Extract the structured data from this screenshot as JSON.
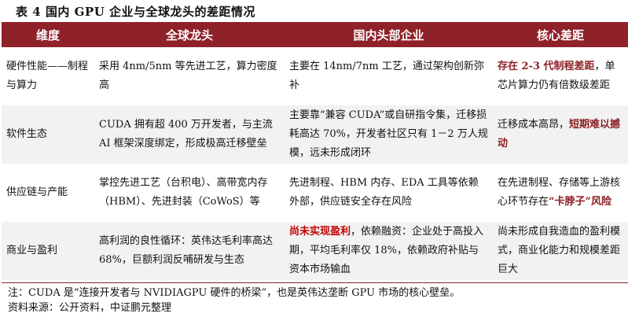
{
  "title": "表 4 国内 GPU 企业与全球龙头的差距情况",
  "headers": [
    "维度",
    "全球龙头",
    "国内头部企业",
    "核心差距"
  ],
  "accent_color": "#8f2129",
  "rows": [
    {
      "dimension": "硬件性能——制程与算力",
      "global": [
        {
          "t": "采用 4nm/5nm 等先进工艺，算力密度高",
          "s": ""
        }
      ],
      "domestic": [
        {
          "t": "主要在 14nm/7nm 工艺，通过架构创新弥补",
          "s": ""
        }
      ],
      "gap": [
        {
          "t": "存在 2-3 代制程差距",
          "s": "em"
        },
        {
          "t": "，单芯片算力仍有倍数级差距",
          "s": ""
        }
      ]
    },
    {
      "dimension": "软件生态",
      "global": [
        {
          "t": "CUDA 拥有超 400 万开发者，与主流 AI 框架深度绑定，形成极高迁移壁垒",
          "s": ""
        }
      ],
      "domestic": [
        {
          "t": "主要靠“兼容 CUDA”或自研指令集，迁移损耗高达 70%，开发者社区只有 1－2 万人规模，远未形成闭环",
          "s": ""
        }
      ],
      "gap": [
        {
          "t": "迁移成本高昂，",
          "s": ""
        },
        {
          "t": "短期难以撼动",
          "s": "em"
        }
      ]
    },
    {
      "dimension": "供应链与产能",
      "global": [
        {
          "t": "掌控先进工艺（台积电）、高带宽内存（HBM）、先进封装（CoWoS）等",
          "s": ""
        }
      ],
      "domestic": [
        {
          "t": "先进制程、HBM 内存、EDA 工具等依赖外部，供应链安全存在风险",
          "s": ""
        }
      ],
      "gap": [
        {
          "t": "在先进制程、存储等上游核心环节存在",
          "s": ""
        },
        {
          "t": "“卡脖子”风险",
          "s": "em"
        }
      ]
    },
    {
      "dimension": "商业与盈利",
      "global": [
        {
          "t": "高利润的良性循环：英伟达毛利率高达 68%，巨额利润反哺研发与生态",
          "s": ""
        }
      ],
      "domestic": [
        {
          "t": "尚未实现盈利",
          "s": "em2"
        },
        {
          "t": "，依赖融资：企业处于高投入期，平均毛利率仅 18%，依赖政府补贴与资本市场输血",
          "s": ""
        }
      ],
      "gap": [
        {
          "t": "尚未形成自我造血的盈利模式，商业化能力和规模差距巨大",
          "s": ""
        }
      ]
    }
  ],
  "note": "注：CUDA 是“连接开发者与 NVIDIAGPU 硬件的桥梁”，也是英伟达垄断 GPU 市场的核心壁垒。",
  "source": "资料来源：公开资料，中证鹏元整理"
}
